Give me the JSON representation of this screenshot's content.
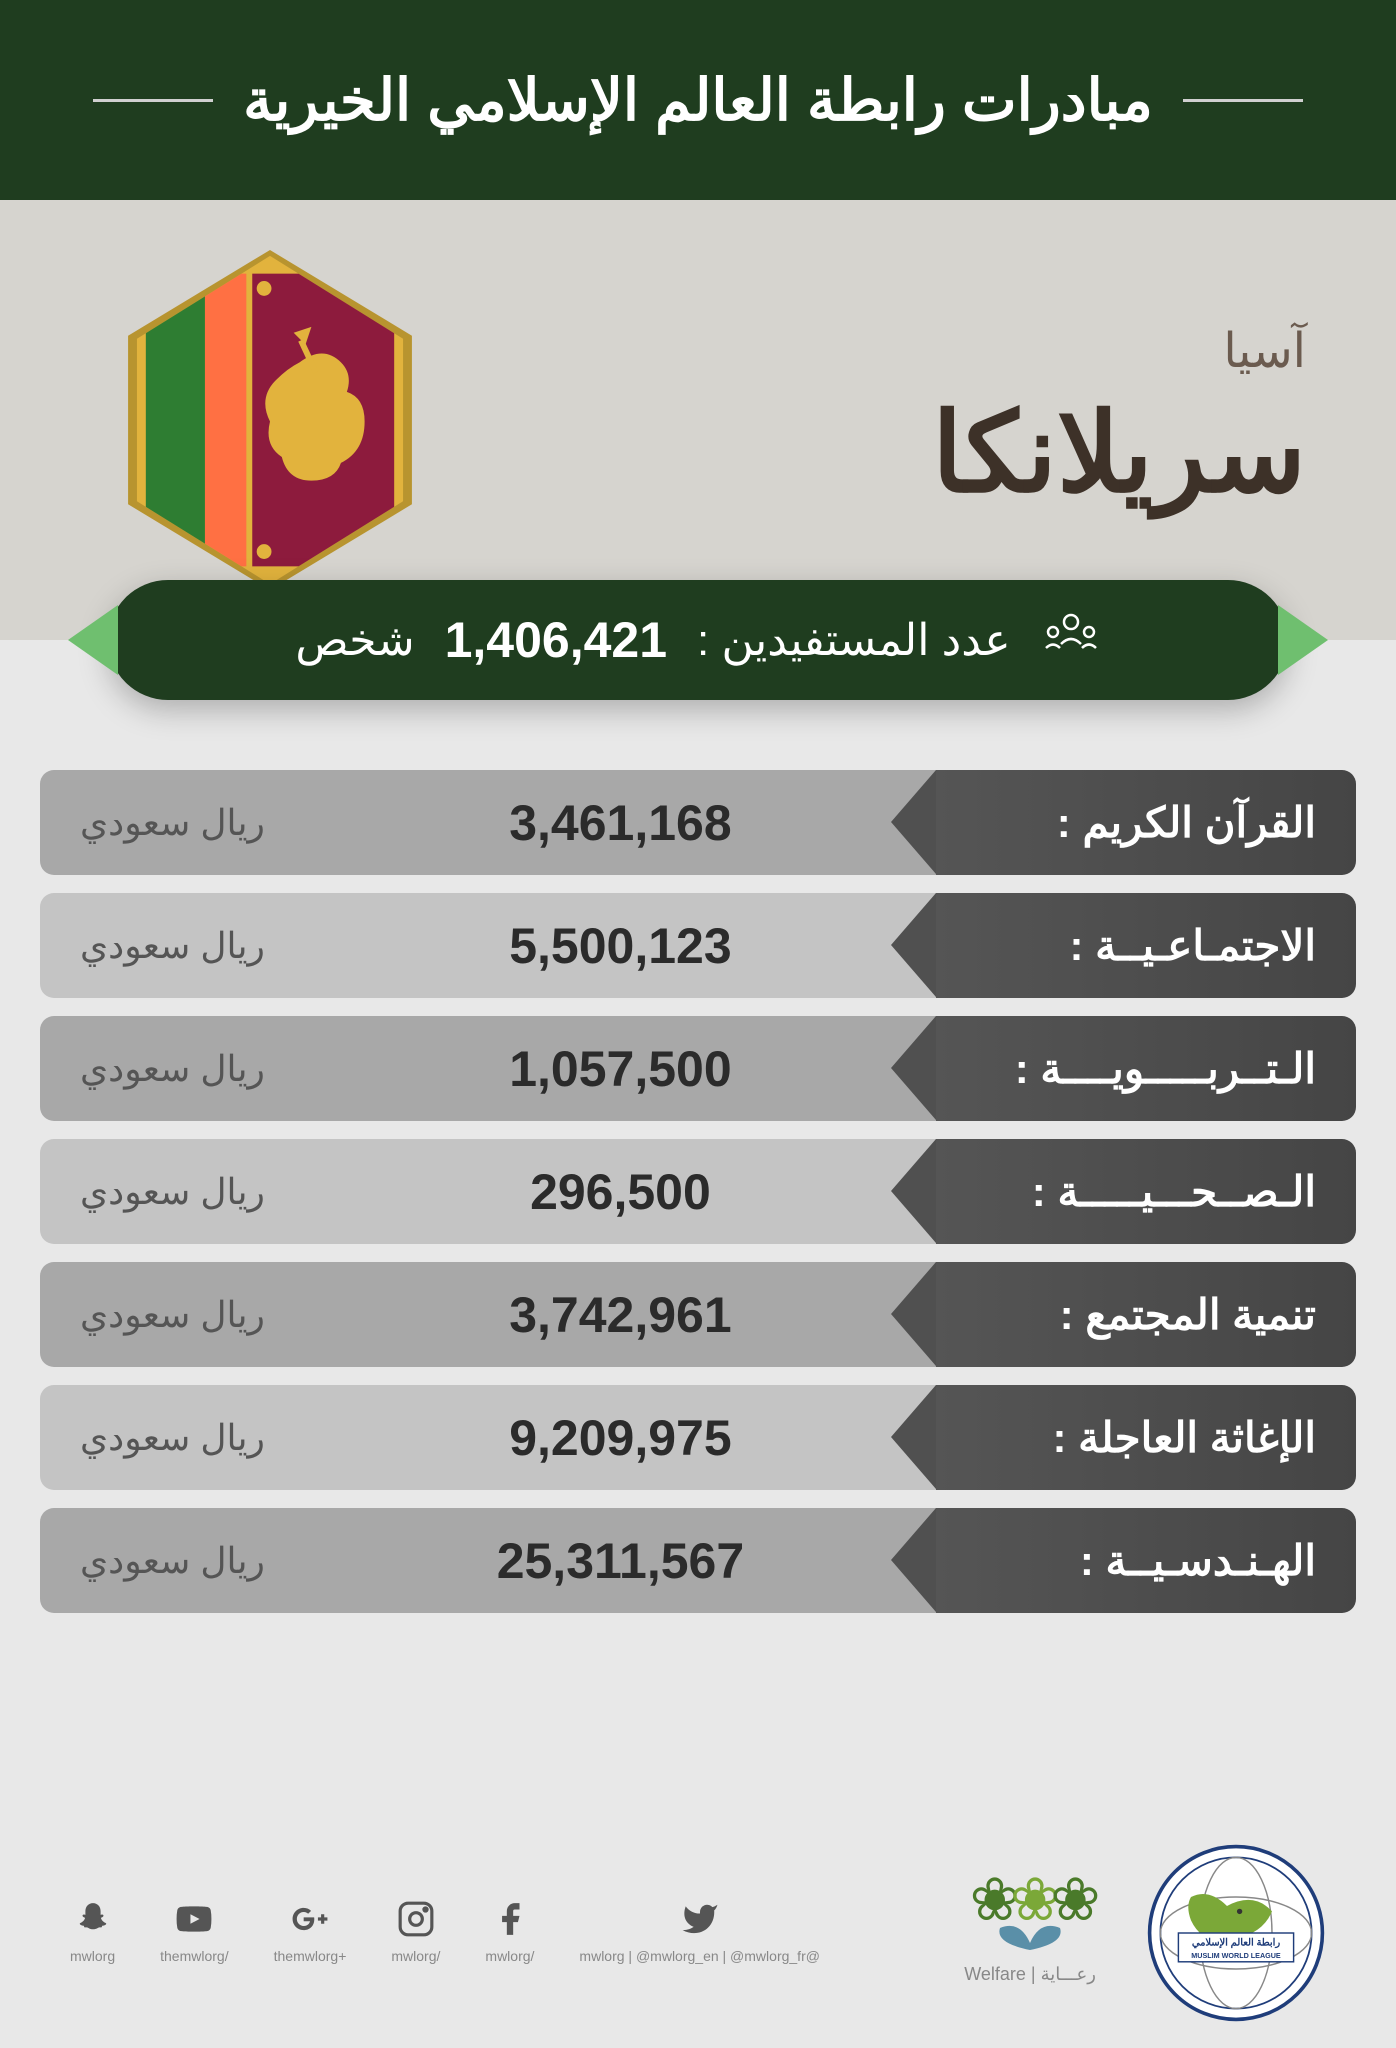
{
  "header": {
    "title": "مبادرات رابطة العالم الإسلامي الخيرية"
  },
  "country": {
    "continent": "آسيا",
    "name": "سريلانكا",
    "flag": {
      "bg": "#e2b33d",
      "panel": "#8d1b3d",
      "border": "#e2b33d",
      "stripe1": "#2e7d32",
      "stripe2": "#ff7043",
      "lion": "#e2b33d"
    }
  },
  "beneficiaries": {
    "label": "عدد المستفيدين :",
    "number": "1,406,421",
    "unit": "شخص"
  },
  "currency_unit": "ريال سعودي",
  "rows": [
    {
      "label": "القرآن الكريم :",
      "value": "3,461,168"
    },
    {
      "label": "الاجتمـاعـيــة :",
      "value": "5,500,123"
    },
    {
      "label": "الـتــربـــــويــــة :",
      "value": "1,057,500"
    },
    {
      "label": "الـصــحـــيـــــة :",
      "value": "296,500"
    },
    {
      "label": "تنمية المجتمع :",
      "value": "3,742,961"
    },
    {
      "label": "الإغاثة العاجلة :",
      "value": "9,209,975"
    },
    {
      "label": "الهـنـدسـيــة :",
      "value": "25,311,567"
    }
  ],
  "footer": {
    "mwl_ar": "رابطة العالم الإسلامي",
    "mwl_en": "MUSLIM WORLD LEAGUE",
    "welfare_ar": "رعـــاية",
    "welfare_en": "Welfare",
    "socials": [
      {
        "icon": "twitter",
        "handle": "@mwlorg | @mwlorg_en | @mwlorg_fr"
      },
      {
        "icon": "facebook",
        "handle": "/mwlorg"
      },
      {
        "icon": "instagram",
        "handle": "/mwlorg"
      },
      {
        "icon": "gplus",
        "handle": "+themwlorg"
      },
      {
        "icon": "youtube",
        "handle": "/themwlorg"
      },
      {
        "icon": "snapchat",
        "handle": "mwlorg"
      }
    ]
  }
}
